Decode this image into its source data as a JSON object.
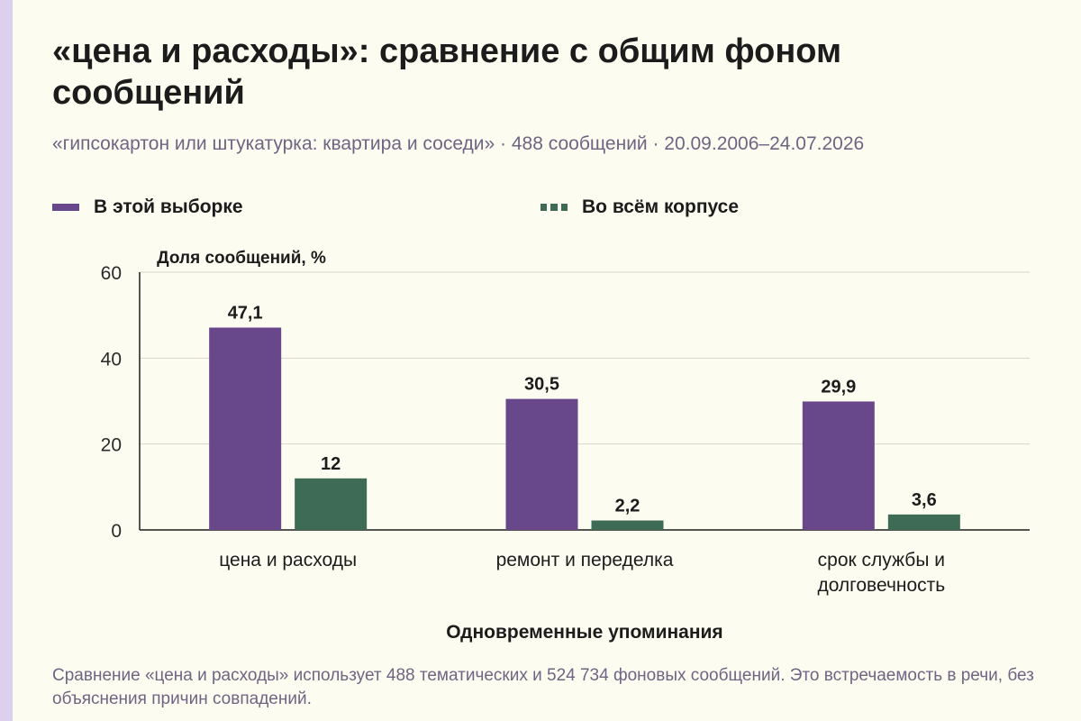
{
  "title": "«цена и расходы»: сравнение с общим фоном сообщений",
  "subtitle": "«гипсокартон или штукатурка: квартира и соседи» · 488 сообщений · 20.09.2006–24.07.2026",
  "footnote": "Сравнение «цена и расходы» использует 488 тематических и 524 734 фоновых сообщений. Это встречаемость в речи, без объяснения причин совпадений.",
  "colors": {
    "sample": "#68488a",
    "corpus": "#3e6b55",
    "grid": "#d9d6cc",
    "axis": "#1c1c1c",
    "background": "#fdfcf0",
    "accent_strip": "#ddd0ee"
  },
  "legend": [
    {
      "label": "В этой выборке",
      "color": "#68488a",
      "style": "solid"
    },
    {
      "label": "Во всём корпусе",
      "color": "#3e6b55",
      "style": "dashed"
    }
  ],
  "chart_data": {
    "type": "bar",
    "ylabel": "Доля сообщений, %",
    "xlabel": "Одновременные упоминания",
    "ylim": [
      0,
      60
    ],
    "yticks": [
      0,
      20,
      40,
      60
    ],
    "grid": true,
    "legend_position": "top",
    "categories": [
      [
        "цена и расходы"
      ],
      [
        "ремонт и переделка"
      ],
      [
        "срок службы и",
        "долговечность"
      ]
    ],
    "series": [
      {
        "name": "В этой выборке",
        "values": [
          47.1,
          30.5,
          29.9
        ],
        "labels": [
          "47,1",
          "30,5",
          "29,9"
        ]
      },
      {
        "name": "Во всём корпусе",
        "values": [
          12,
          2.2,
          3.6
        ],
        "labels": [
          "12",
          "2,2",
          "3,6"
        ]
      }
    ]
  }
}
